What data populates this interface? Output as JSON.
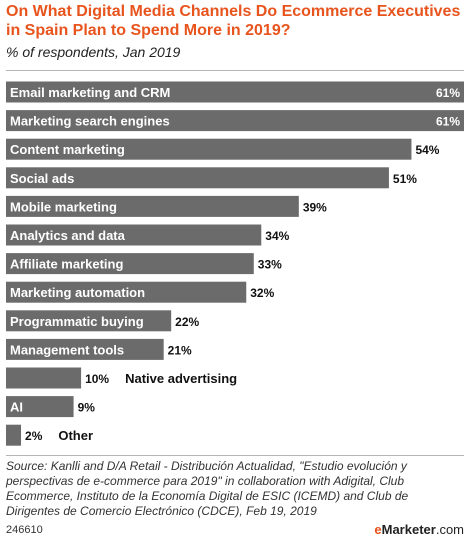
{
  "chart_data": {
    "type": "bar",
    "orientation": "horizontal",
    "title": "On What Digital Media Channels Do Ecommerce Executives in Spain Plan to Spend More in 2019?",
    "subtitle": "% of respondents, Jan 2019",
    "categories": [
      "Email marketing and CRM",
      "Marketing search engines",
      "Content marketing",
      "Social ads",
      "Mobile marketing",
      "Analytics and data",
      "Affiliate marketing",
      "Marketing automation",
      "Programmatic buying",
      "Management tools",
      "Native advertising",
      "AI",
      "Other"
    ],
    "values": [
      61,
      61,
      54,
      51,
      39,
      34,
      33,
      32,
      22,
      21,
      10,
      9,
      2
    ],
    "value_labels": [
      "61%",
      "61%",
      "54%",
      "51%",
      "39%",
      "34%",
      "33%",
      "32%",
      "22%",
      "21%",
      "10%",
      "9%",
      "2%"
    ],
    "bar_color": "#6b6b6b",
    "label_color_inside": "#ffffff",
    "label_color_outside": "#111111",
    "xlim": [
      0,
      61
    ],
    "grid": false,
    "legend": "none"
  },
  "source": "Source: Kanlli and D/A Retail - Distribución Actualidad, \"Estudio evolución y perspectivas de e-commerce para 2019\" in collaboration with Adigital, Club Ecommerce, Instituto de la Economía Digital de ESIC (ICEMD) and Club de Dirigentes de Comercio Electrónico (CDCE), Feb 19, 2019",
  "footer": {
    "chart_id": "246610",
    "brand_e": "e",
    "brand_rest": "Marketer",
    "brand_suffix": ".com"
  },
  "colors": {
    "title": "#e8541d",
    "bar": "#6b6b6b"
  }
}
